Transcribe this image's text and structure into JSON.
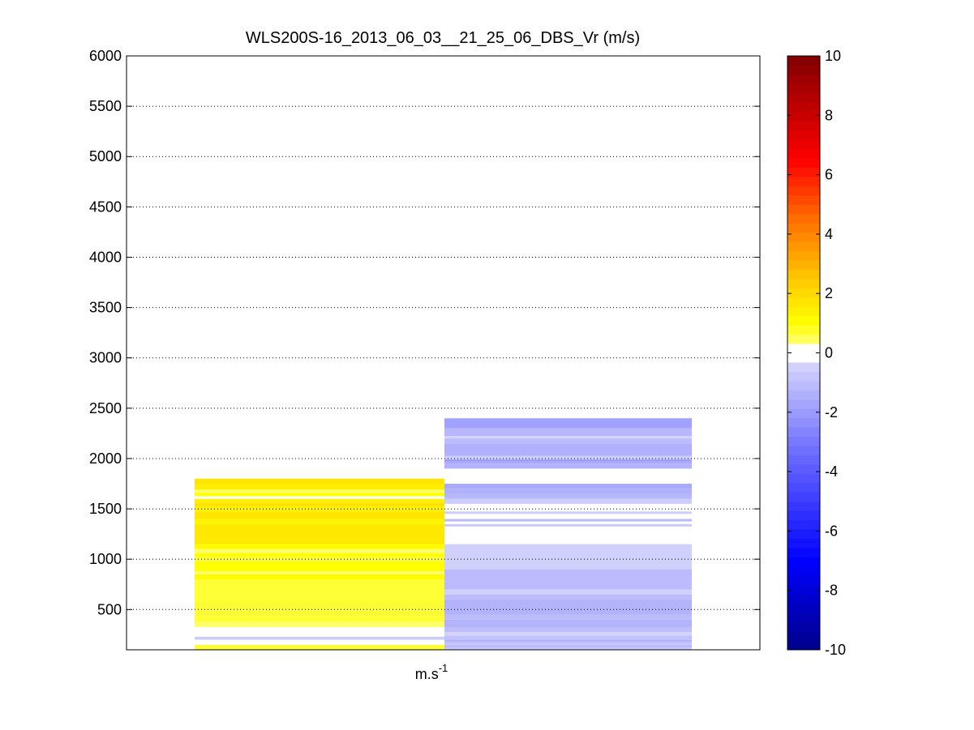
{
  "chart_data": {
    "type": "heatmap",
    "title": "WLS200S-16_2013_06_03__21_25_06_DBS_Vr (m/s)",
    "xlabel": {
      "base": "m.s",
      "sup": "-1"
    },
    "ylabel": "",
    "ylim": [
      100,
      6000
    ],
    "yticks": [
      500,
      1000,
      1500,
      2000,
      2500,
      3000,
      3500,
      4000,
      4500,
      5000,
      5500,
      6000
    ],
    "grid": "horizontal dotted",
    "colorbar": {
      "clim": [
        -10,
        10
      ],
      "ticks": [
        -10,
        -8,
        -6,
        -4,
        -2,
        0,
        2,
        4,
        6,
        8,
        10
      ],
      "levels": 64,
      "white_band": [
        -0.2,
        0.3
      ],
      "colormap": "dark blue → blue → white → yellow → orange → red → dark red"
    },
    "columns": [
      {
        "values_by_height": [
          {
            "from": 100,
            "to": 150,
            "value": 0.7
          },
          {
            "from": 150,
            "to": 170,
            "value": 0.3
          },
          {
            "from": 170,
            "to": 200,
            "value": 0.1
          },
          {
            "from": 200,
            "to": 230,
            "value": -0.6
          },
          {
            "from": 230,
            "to": 325,
            "value": 0.0
          },
          {
            "from": 325,
            "to": 375,
            "value": 0.4
          },
          {
            "from": 375,
            "to": 800,
            "value": 0.7
          },
          {
            "from": 800,
            "to": 850,
            "value": 1.1
          },
          {
            "from": 850,
            "to": 880,
            "value": 0.4
          },
          {
            "from": 880,
            "to": 975,
            "value": 1.0
          },
          {
            "from": 975,
            "to": 1025,
            "value": 0.7
          },
          {
            "from": 1025,
            "to": 1060,
            "value": 1.0
          },
          {
            "from": 1060,
            "to": 1100,
            "value": 0.4
          },
          {
            "from": 1100,
            "to": 1150,
            "value": 1.1
          },
          {
            "from": 1150,
            "to": 1350,
            "value": 1.6
          },
          {
            "from": 1350,
            "to": 1400,
            "value": 1.3
          },
          {
            "from": 1400,
            "to": 1475,
            "value": 1.7
          },
          {
            "from": 1475,
            "to": 1525,
            "value": 1.4
          },
          {
            "from": 1525,
            "to": 1560,
            "value": 1.8
          },
          {
            "from": 1560,
            "to": 1600,
            "value": 1.4
          },
          {
            "from": 1600,
            "to": 1625,
            "value": 0.0
          },
          {
            "from": 1625,
            "to": 1660,
            "value": 1.0
          },
          {
            "from": 1660,
            "to": 1690,
            "value": 0.4
          },
          {
            "from": 1690,
            "to": 1750,
            "value": 1.5
          },
          {
            "from": 1750,
            "to": 1800,
            "value": 1.7
          }
        ]
      },
      {
        "values_by_height": [
          {
            "from": 100,
            "to": 120,
            "value": -0.6
          },
          {
            "from": 120,
            "to": 150,
            "value": -1.1
          },
          {
            "from": 150,
            "to": 175,
            "value": -0.8
          },
          {
            "from": 175,
            "to": 200,
            "value": -1.3
          },
          {
            "from": 200,
            "to": 240,
            "value": -0.9
          },
          {
            "from": 240,
            "to": 275,
            "value": -0.4
          },
          {
            "from": 275,
            "to": 325,
            "value": -1.0
          },
          {
            "from": 325,
            "to": 400,
            "value": -1.3
          },
          {
            "from": 400,
            "to": 450,
            "value": -1.1
          },
          {
            "from": 450,
            "to": 600,
            "value": -1.3
          },
          {
            "from": 600,
            "to": 650,
            "value": -1.1
          },
          {
            "from": 650,
            "to": 700,
            "value": -0.5
          },
          {
            "from": 700,
            "to": 900,
            "value": -1.1
          },
          {
            "from": 900,
            "to": 1150,
            "value": -0.5
          },
          {
            "from": 1150,
            "to": 1325,
            "value": 0.0
          },
          {
            "from": 1325,
            "to": 1350,
            "value": -0.7
          },
          {
            "from": 1350,
            "to": 1375,
            "value": -0.2
          },
          {
            "from": 1375,
            "to": 1400,
            "value": -1.1
          },
          {
            "from": 1400,
            "to": 1450,
            "value": -0.2
          },
          {
            "from": 1450,
            "to": 1475,
            "value": -0.6
          },
          {
            "from": 1475,
            "to": 1550,
            "value": -0.2
          },
          {
            "from": 1550,
            "to": 1600,
            "value": -0.6
          },
          {
            "from": 1600,
            "to": 1650,
            "value": -1.2
          },
          {
            "from": 1650,
            "to": 1700,
            "value": -1.4
          },
          {
            "from": 1700,
            "to": 1750,
            "value": -1.6
          },
          {
            "from": 1750,
            "to": 1900,
            "value": 0.0
          },
          {
            "from": 1900,
            "to": 1950,
            "value": -1.3
          },
          {
            "from": 1950,
            "to": 1975,
            "value": -1.6
          },
          {
            "from": 1975,
            "to": 1990,
            "value": -2.2
          },
          {
            "from": 1990,
            "to": 2025,
            "value": -0.6
          },
          {
            "from": 2025,
            "to": 2150,
            "value": -1.4
          },
          {
            "from": 2150,
            "to": 2200,
            "value": -1.1
          },
          {
            "from": 2200,
            "to": 2225,
            "value": -0.4
          },
          {
            "from": 2225,
            "to": 2300,
            "value": -1.2
          },
          {
            "from": 2300,
            "to": 2400,
            "value": -1.8
          }
        ]
      }
    ]
  }
}
